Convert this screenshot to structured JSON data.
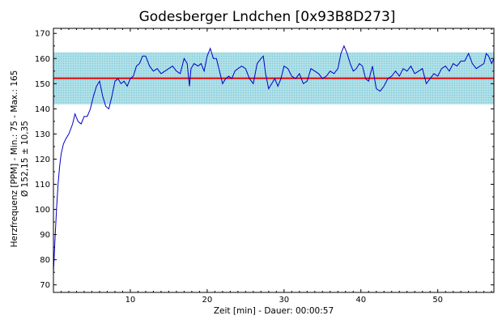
{
  "chart_data": {
    "type": "line",
    "title": "Godesberger Lndchen [0x93B8D273]",
    "xlabel": "Zeit [min] - Dauer: 00:00:57",
    "ylabel_lines": [
      "Herzfrequenz [PPM] - Min.: 75 - Max.: 165",
      "Ø 152,15 ± 10,35"
    ],
    "xlim": [
      0,
      57.3
    ],
    "ylim": [
      67,
      172
    ],
    "xticks": [
      10,
      20,
      30,
      40,
      50
    ],
    "yticks": [
      70,
      80,
      90,
      100,
      110,
      120,
      130,
      140,
      150,
      160,
      170
    ],
    "grid": false,
    "mean": 152.15,
    "std_band": [
      141.8,
      162.5
    ],
    "colors": {
      "line": "#0000c8",
      "mean_line": "#e60000",
      "band": "#a8dde6",
      "band_dots": "#7fc8d6",
      "frame": "#000000"
    },
    "series": [
      {
        "x": [
          0,
          0.2,
          0.4,
          0.6,
          0.8,
          1.0,
          1.3,
          1.6,
          2.0,
          2.5,
          2.8,
          3.2,
          3.6,
          4.0,
          4.4,
          4.8,
          5.2,
          5.6,
          6.0,
          6.4,
          6.8,
          7.2,
          7.6,
          8.0,
          8.4,
          8.8,
          9.2,
          9.6,
          10.0,
          10.4,
          10.8,
          11.2,
          11.6,
          12.0,
          12.5,
          13.0,
          13.5,
          14.0,
          14.5,
          15.0,
          15.5,
          16.0,
          16.5,
          17.0,
          17.4,
          17.7,
          17.9,
          18.3,
          18.8,
          19.2,
          19.6,
          20.0,
          20.4,
          20.8,
          21.2,
          21.6,
          22.0,
          22.4,
          22.8,
          23.2,
          23.6,
          24.0,
          24.5,
          25.0,
          25.5,
          26.0,
          26.5,
          27.0,
          27.3,
          27.6,
          28.0,
          28.4,
          28.8,
          29.2,
          29.6,
          30.0,
          30.5,
          31.0,
          31.5,
          32.0,
          32.5,
          33.0,
          33.5,
          34.0,
          34.5,
          35.0,
          35.5,
          36.0,
          36.5,
          37.0,
          37.4,
          37.8,
          38.2,
          38.6,
          39.0,
          39.4,
          39.8,
          40.2,
          40.6,
          41.0,
          41.5,
          42.0,
          42.5,
          43.0,
          43.5,
          44.0,
          44.5,
          45.0,
          45.5,
          46.0,
          46.5,
          47.0,
          47.5,
          48.0,
          48.5,
          49.0,
          49.5,
          50.0,
          50.5,
          51.0,
          51.5,
          52.0,
          52.5,
          53.0,
          53.5,
          54.0,
          54.5,
          55.0,
          55.5,
          56.0,
          56.3,
          56.6,
          57.0,
          57.3
        ],
        "y": [
          75,
          88,
          100,
          110,
          117,
          122,
          126,
          128,
          130,
          134,
          138,
          135,
          134,
          137,
          137,
          140,
          145,
          149,
          151,
          145,
          141,
          140,
          145,
          151,
          152,
          150,
          151,
          149,
          152,
          153,
          157,
          158,
          161,
          161,
          157,
          155,
          156,
          154,
          155,
          156,
          157,
          155,
          154,
          160,
          158,
          149,
          156,
          158,
          157,
          158,
          155,
          161,
          164,
          160,
          160,
          155,
          150,
          152,
          153,
          152,
          155,
          156,
          157,
          156,
          152,
          150,
          158,
          160,
          161,
          154,
          148,
          150,
          152,
          149,
          152,
          157,
          156,
          153,
          152,
          154,
          150,
          151,
          156,
          155,
          154,
          152,
          153,
          155,
          154,
          156,
          162,
          165,
          162,
          158,
          155,
          156,
          158,
          157,
          152,
          151,
          157,
          148,
          147,
          149,
          152,
          153,
          155,
          153,
          156,
          155,
          157,
          154,
          155,
          156,
          150,
          152,
          154,
          153,
          156,
          157,
          155,
          158,
          157,
          159,
          159,
          162,
          158,
          156,
          157,
          158,
          162,
          161,
          158,
          160
        ]
      }
    ]
  }
}
